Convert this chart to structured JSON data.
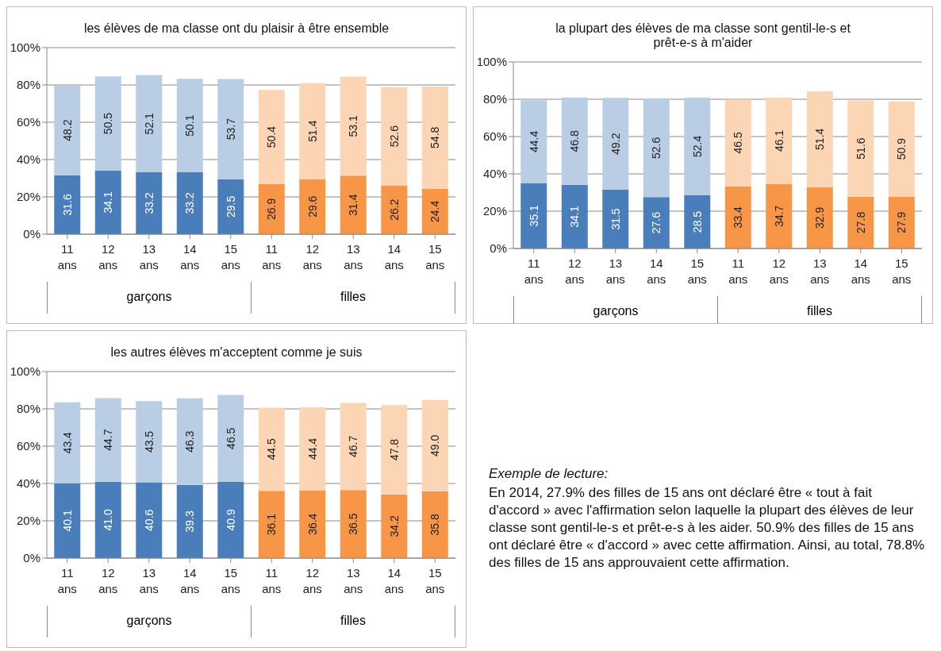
{
  "chart_data": [
    {
      "type": "bar",
      "title": "les élèves de ma classe ont du plaisir à être ensemble",
      "categories": [
        "11 ans",
        "12 ans",
        "13 ans",
        "14 ans",
        "15 ans",
        "11 ans",
        "12 ans",
        "13 ans",
        "14 ans",
        "15 ans"
      ],
      "stacked": true,
      "grid": "y",
      "ylim": [
        0,
        100
      ],
      "yticks": [
        {
          "value": 0,
          "label": "0%"
        },
        {
          "value": 20,
          "label": "20%"
        },
        {
          "value": 40,
          "label": "40%"
        },
        {
          "value": 60,
          "label": "60%"
        },
        {
          "value": 80,
          "label": "80%"
        },
        {
          "value": 100,
          "label": "100%"
        }
      ],
      "annotations": [
        "garçons",
        "filles"
      ],
      "series": [
        {
          "colors": [
            "#4a7ebb",
            "#4a7ebb",
            "#4a7ebb",
            "#4a7ebb",
            "#4a7ebb",
            "#f79646",
            "#f79646",
            "#f79646",
            "#f79646",
            "#f79646"
          ],
          "values": [
            31.6,
            34.1,
            33.2,
            33.2,
            29.5,
            26.9,
            29.6,
            31.4,
            26.2,
            24.4
          ],
          "value_labels": [
            "31.6",
            "34.1",
            "33.2",
            "33.2",
            "29.5",
            "26.9",
            "29.6",
            "31.4",
            "26.2",
            "24.4"
          ]
        },
        {
          "colors": [
            "#b9cde5",
            "#b9cde5",
            "#b9cde5",
            "#b9cde5",
            "#b9cde5",
            "#fcd5b5",
            "#fcd5b5",
            "#fcd5b5",
            "#fcd5b5",
            "#fcd5b5"
          ],
          "values": [
            48.2,
            50.5,
            52.1,
            50.1,
            53.7,
            50.4,
            51.4,
            53.1,
            52.6,
            54.8
          ],
          "value_labels": [
            "48.2",
            "50.5",
            "52.1",
            "50.1",
            "53.7",
            "50.4",
            "51.4",
            "53.1",
            "52.6",
            "54.8"
          ]
        }
      ]
    },
    {
      "type": "bar",
      "title": "la plupart des élèves de ma classe sont gentil-le-s et prêt-e-s à m'aider",
      "categories": [
        "11 ans",
        "12 ans",
        "13 ans",
        "14 ans",
        "15 ans",
        "11 ans",
        "12 ans",
        "13 ans",
        "14 ans",
        "15 ans"
      ],
      "stacked": true,
      "grid": "y",
      "ylim": [
        0,
        100
      ],
      "yticks": [
        {
          "value": 0,
          "label": "0%"
        },
        {
          "value": 20,
          "label": "20%"
        },
        {
          "value": 40,
          "label": "40%"
        },
        {
          "value": 60,
          "label": "60%"
        },
        {
          "value": 80,
          "label": "80%"
        },
        {
          "value": 100,
          "label": "100%"
        }
      ],
      "annotations": [
        "garçons",
        "filles"
      ],
      "series": [
        {
          "colors": [
            "#4a7ebb",
            "#4a7ebb",
            "#4a7ebb",
            "#4a7ebb",
            "#4a7ebb",
            "#f79646",
            "#f79646",
            "#f79646",
            "#f79646",
            "#f79646"
          ],
          "values": [
            35.1,
            34.1,
            31.5,
            27.6,
            28.5,
            33.4,
            34.7,
            32.9,
            27.8,
            27.9
          ],
          "value_labels": [
            "35.1",
            "34.1",
            "31.5",
            "27.6",
            "28.5",
            "33.4",
            "34.7",
            "32.9",
            "27.8",
            "27.9"
          ]
        },
        {
          "colors": [
            "#b9cde5",
            "#b9cde5",
            "#b9cde5",
            "#b9cde5",
            "#b9cde5",
            "#fcd5b5",
            "#fcd5b5",
            "#fcd5b5",
            "#fcd5b5",
            "#fcd5b5"
          ],
          "values": [
            44.4,
            46.8,
            49.2,
            52.6,
            52.4,
            46.5,
            46.1,
            51.4,
            51.6,
            50.9
          ],
          "value_labels": [
            "44.4",
            "46.8",
            "49.2",
            "52.6",
            "52.4",
            "46.5",
            "46.1",
            "51.4",
            "51.6",
            "50.9"
          ]
        }
      ]
    },
    {
      "type": "bar",
      "title": "les autres élèves m'acceptent comme je suis",
      "categories": [
        "11 ans",
        "12 ans",
        "13 ans",
        "14 ans",
        "15 ans",
        "11 ans",
        "12 ans",
        "13 ans",
        "14 ans",
        "15 ans"
      ],
      "stacked": true,
      "grid": "y",
      "ylim": [
        0,
        100
      ],
      "yticks": [
        {
          "value": 0,
          "label": "0%"
        },
        {
          "value": 20,
          "label": "20%"
        },
        {
          "value": 40,
          "label": "40%"
        },
        {
          "value": 60,
          "label": "60%"
        },
        {
          "value": 80,
          "label": "80%"
        },
        {
          "value": 100,
          "label": "100%"
        }
      ],
      "annotations": [
        "garçons",
        "filles"
      ],
      "series": [
        {
          "colors": [
            "#4a7ebb",
            "#4a7ebb",
            "#4a7ebb",
            "#4a7ebb",
            "#4a7ebb",
            "#f79646",
            "#f79646",
            "#f79646",
            "#f79646",
            "#f79646"
          ],
          "values": [
            40.1,
            41.0,
            40.6,
            39.3,
            40.9,
            36.1,
            36.4,
            36.5,
            34.2,
            35.8
          ],
          "value_labels": [
            "40.1",
            "41.0",
            "40.6",
            "39.3",
            "40.9",
            "36.1",
            "36.4",
            "36.5",
            "34.2",
            "35.8"
          ]
        },
        {
          "colors": [
            "#b9cde5",
            "#b9cde5",
            "#b9cde5",
            "#b9cde5",
            "#b9cde5",
            "#fcd5b5",
            "#fcd5b5",
            "#fcd5b5",
            "#fcd5b5",
            "#fcd5b5"
          ],
          "values": [
            43.4,
            44.7,
            43.5,
            46.3,
            46.5,
            44.5,
            44.4,
            46.7,
            47.8,
            49.0
          ],
          "value_labels": [
            "43.4",
            "44.7",
            "43.5",
            "46.3",
            "46.5",
            "44.5",
            "44.4",
            "46.7",
            "47.8",
            "49.0"
          ]
        }
      ]
    },
    {
      "type": "other",
      "annotations": [
        "Exemple de lecture:",
        "En 2014, 27.9% des filles de 15 ans ont déclaré être « tout à fait d'accord » avec l'affirmation selon laquelle la plupart des élèves de leur classe sont gentil-le-s et prêt-e-s à les aider. 50.9% des filles de 15 ans ont déclaré être « d'accord » avec cette affirmation. Ainsi, au total, 78.8% des filles de 15 ans approuvaient cette affirmation."
      ]
    }
  ]
}
